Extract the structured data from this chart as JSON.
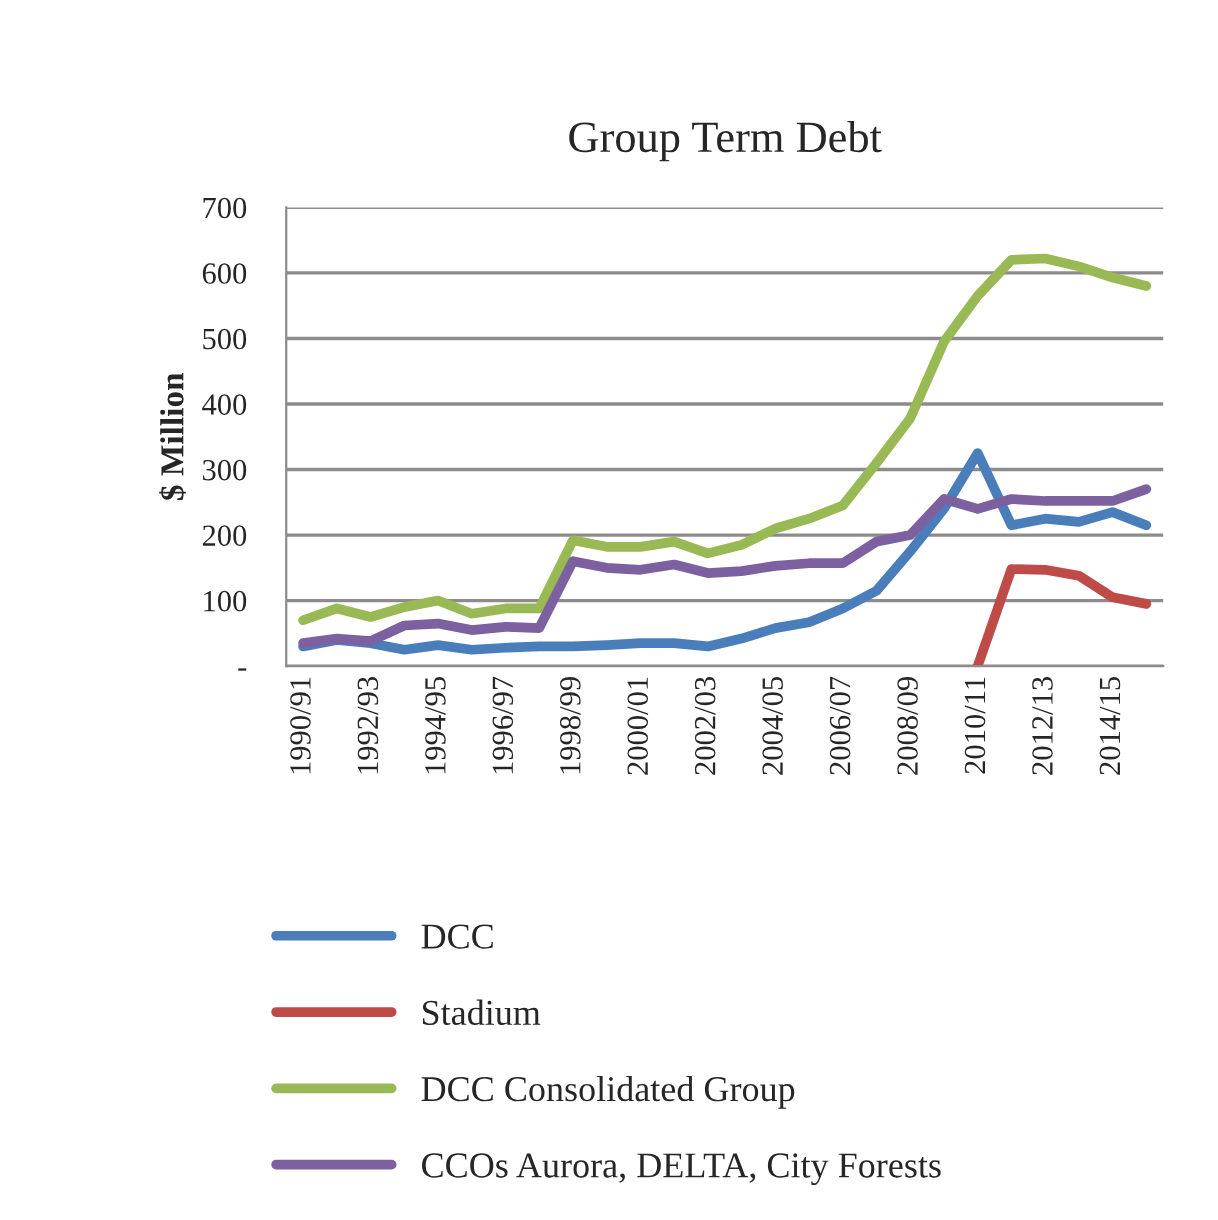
{
  "chart_data": {
    "type": "line",
    "title": "Group Term Debt",
    "ylabel": "$ Million",
    "categories": [
      "1990/91",
      null,
      "1992/93",
      null,
      "1994/95",
      null,
      "1996/97",
      null,
      "1998/99",
      null,
      "2000/01",
      null,
      "2002/03",
      null,
      "2004/05",
      null,
      "2006/07",
      null,
      "2008/09",
      null,
      "2010/11",
      null,
      "2012/13",
      null,
      "2014/15",
      null
    ],
    "series": [
      {
        "name": "DCC",
        "color": "#4a7ebb",
        "values": [
          30,
          40,
          35,
          25,
          32,
          25,
          28,
          30,
          30,
          32,
          35,
          35,
          30,
          42,
          58,
          67,
          88,
          115,
          175,
          240,
          325,
          215,
          225,
          220,
          235,
          215
        ]
      },
      {
        "name": "Stadium",
        "color": "#be4b48",
        "values": [
          null,
          null,
          null,
          null,
          null,
          null,
          null,
          null,
          null,
          null,
          null,
          null,
          null,
          null,
          null,
          null,
          null,
          null,
          null,
          null,
          0,
          148,
          147,
          138,
          105,
          95
        ]
      },
      {
        "name": "DCC Consolidated Group",
        "color": "#98b954",
        "values": [
          70,
          88,
          75,
          90,
          100,
          80,
          88,
          88,
          192,
          182,
          182,
          190,
          172,
          185,
          210,
          225,
          245,
          310,
          378,
          495,
          565,
          620,
          622,
          610,
          593,
          580
        ]
      },
      {
        "name": "CCOs Aurora, DELTA, City Forests",
        "color": "#7d60a0",
        "values": [
          35,
          42,
          38,
          62,
          65,
          55,
          60,
          58,
          160,
          150,
          147,
          155,
          142,
          145,
          153,
          157,
          157,
          190,
          200,
          255,
          240,
          255,
          252,
          252,
          252,
          270
        ]
      }
    ],
    "ylim": [
      0,
      700
    ],
    "yticks": [
      {
        "value": 0,
        "label": "-"
      },
      100,
      200,
      300,
      400,
      500,
      600,
      700
    ],
    "grid": "y",
    "legend": "bottom",
    "line_style": "solid",
    "marker": "none"
  }
}
